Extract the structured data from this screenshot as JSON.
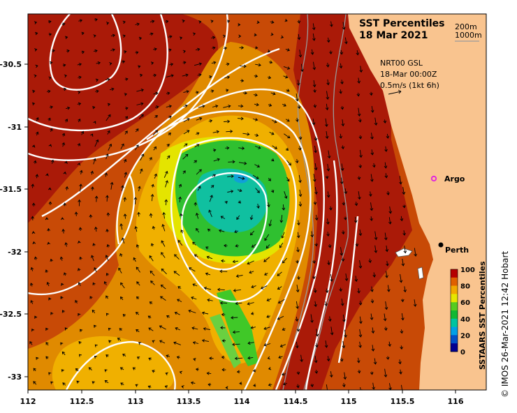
{
  "title": {
    "line1": "SST Percentiles",
    "line2": "18 Mar 2021"
  },
  "depth_legend": [
    "200m",
    "1000m"
  ],
  "current_info": {
    "line1": "NRT00 GSL",
    "line2": "18-Mar 00:00Z",
    "line3": "0.5m/s (1kt 6h)"
  },
  "places": {
    "argo": "Argo",
    "perth": "Perth"
  },
  "x_ticks": [
    "112",
    "112.5",
    "113",
    "113.5",
    "114",
    "114.5",
    "115",
    "115.5",
    "116"
  ],
  "y_ticks": [
    "-30.5",
    "-31",
    "-31.5",
    "-32",
    "-32.5",
    "-33"
  ],
  "colorbar": {
    "title": "SSTAARS SST Percentiles",
    "labels": [
      "100",
      "80",
      "60",
      "40",
      "20",
      "0"
    ],
    "colors": [
      "#b50000",
      "#e06000",
      "#f2a900",
      "#e6e600",
      "#55cc20",
      "#12b832",
      "#00c4a0",
      "#00a0e6",
      "#0050c8",
      "#000090"
    ]
  },
  "colors": {
    "land": "#f9c48f",
    "dark_red": "#aa1a08",
    "red_orange": "#c84a06",
    "orange": "#e08a00",
    "amber": "#f0b000",
    "yellow": "#e4e400",
    "green": "#2fc030",
    "teal": "#10c0a0",
    "contour": "#ffffff",
    "isobath": "#9a9a9a",
    "argo": "#e020e0"
  },
  "copyright": "© IMOS 26-Mar-2021 12:42 Hobart"
}
